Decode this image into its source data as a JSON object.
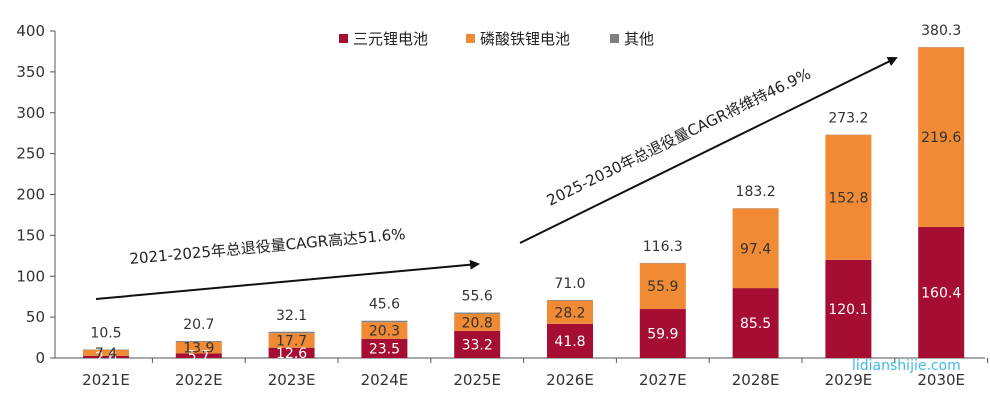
{
  "chart_data": {
    "type": "bar",
    "stacked": true,
    "categories": [
      "2021E",
      "2022E",
      "2023E",
      "2024E",
      "2025E",
      "2026E",
      "2027E",
      "2028E",
      "2029E",
      "2030E"
    ],
    "series": [
      {
        "name": "三元锂电池",
        "color": "#a50d32",
        "values": [
          2.6,
          5.7,
          12.6,
          23.5,
          33.2,
          41.8,
          59.9,
          85.5,
          120.1,
          160.4
        ]
      },
      {
        "name": "磷酸铁锂电池",
        "color": "#f08a35",
        "values": [
          7.4,
          13.9,
          17.7,
          20.3,
          20.8,
          28.2,
          55.9,
          97.4,
          152.8,
          219.6
        ]
      },
      {
        "name": "其他",
        "color": "#7f7f7f",
        "values": [
          0.5,
          1.1,
          1.8,
          1.8,
          1.6,
          1.0,
          0.5,
          0.3,
          0.3,
          0.3
        ]
      }
    ],
    "totals": [
      10.5,
      20.7,
      32.1,
      45.6,
      55.6,
      71.0,
      116.3,
      183.2,
      273.2,
      380.3
    ],
    "segment_labels": {
      "0": [
        "2.6",
        "5.7",
        "12.6",
        "23.5",
        "33.2",
        "41.8",
        "59.9",
        "85.5",
        "120.1",
        "160.4"
      ],
      "1": [
        "7.4",
        "13.9",
        "17.7",
        "20.3",
        "20.8",
        "28.2",
        "55.9",
        "97.4",
        "152.8",
        "219.6"
      ]
    },
    "yticks": [
      0,
      50,
      100,
      150,
      200,
      250,
      300,
      350,
      400
    ],
    "ylim": [
      0,
      400
    ],
    "legend_position": "top-center",
    "grid": false,
    "annotations": [
      {
        "text": "2021-2025年总退役量CAGR高达51.6%"
      },
      {
        "text": "2025-2030年总退役量CAGR将维持46.9%"
      }
    ]
  },
  "watermark": "lidianshijie.com"
}
